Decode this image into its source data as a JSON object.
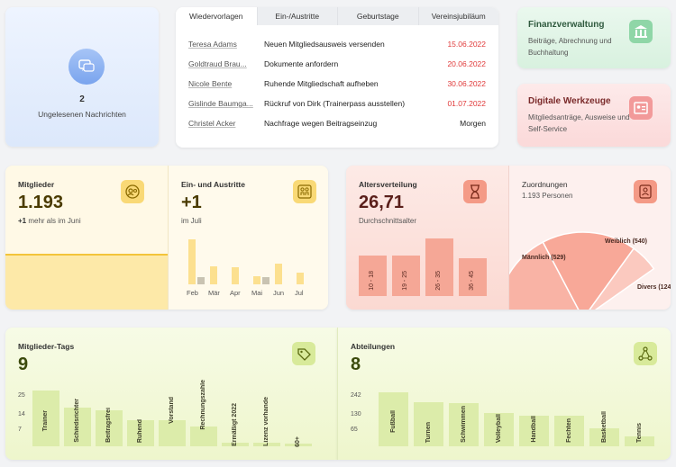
{
  "messages": {
    "count": "2",
    "label": "Ungelesenen Nachrichten",
    "icon": "chat-bubble-icon"
  },
  "reminders": {
    "tabs": [
      "Wiedervorlagen",
      "Ein-/Austritte",
      "Geburtstage",
      "Vereinsjubiläum"
    ],
    "rows": [
      {
        "name": "Teresa Adams",
        "task": "Neuen Mitgliedsausweis versenden",
        "date": "15.06.2022"
      },
      {
        "name": "Goldtraud Brau...",
        "task": "Dokumente anfordern",
        "date": "20.06.2022"
      },
      {
        "name": "Nicole Bente",
        "task": "Ruhende Mitgliedschaft aufheben",
        "date": "30.06.2022"
      },
      {
        "name": "Gislinde Baumga...",
        "task": "Rückruf von Dirk (Trainerpass ausstellen)",
        "date": "01.07.2022"
      },
      {
        "name": "Christel Acker",
        "task": "Nachfrage wegen Beitragseinzug",
        "date": "Morgen"
      }
    ]
  },
  "finance": {
    "title": "Finanzverwaltung",
    "subtitle": "Beiträge, Abrechnung und Buchhaltung",
    "icon": "bank-icon"
  },
  "digital": {
    "title": "Digitale Werkzeuge",
    "subtitle": "Mitgliedsanträge, Ausweise und Self-Service",
    "icon": "id-card-icon"
  },
  "members": {
    "title": "Mitglieder",
    "value": "1.193",
    "delta": "+1",
    "delta_text": "mehr als im Juni",
    "icon": "member-icon"
  },
  "entries": {
    "title": "Ein- und Austritte",
    "value": "+1",
    "sub": "im Juli",
    "icon": "people-icon",
    "chart_data": {
      "type": "bar",
      "categories": [
        "Feb",
        "Mär",
        "Apr",
        "Mai",
        "Jun",
        "Jul"
      ],
      "series": [
        {
          "values": [
            6,
            2.4,
            2.3,
            1.1,
            2.8,
            1.6
          ]
        },
        {
          "values": [
            1,
            0,
            0,
            1,
            0,
            0
          ]
        }
      ]
    }
  },
  "age": {
    "title": "Altersverteilung",
    "value": "26,71",
    "sub": "Durchschnittsalter",
    "icon": "hourglass-icon",
    "chart_data": {
      "type": "bar",
      "categories": [
        "10 - 18",
        "19 - 25",
        "26 - 35",
        "36 - 45"
      ],
      "values": [
        3.6,
        3.6,
        5.1,
        3.4
      ]
    }
  },
  "assignments": {
    "title": "Zuordnungen",
    "sub": "1.193 Personen",
    "icon": "person-badge-icon",
    "chart_data": {
      "type": "pie",
      "slices": [
        {
          "label": "Männlich (529)",
          "value": 529
        },
        {
          "label": "Weiblich (540)",
          "value": 540
        },
        {
          "label": "Divers (124)",
          "value": 124
        }
      ]
    }
  },
  "tags": {
    "title": "Mitglieder-Tags",
    "value": "9",
    "icon": "tag-icon",
    "chart_data": {
      "type": "bar",
      "yticks": [
        "25",
        "14",
        "7"
      ],
      "categories": [
        "Trainer",
        "Schiedsrichter",
        "Beitragsfrei",
        "Ruhend",
        "Vorstand",
        "Rechnungszahle",
        "Ermäßigt 2022",
        "Lizenz vorhande",
        "60+"
      ],
      "values": [
        31,
        21.5,
        20,
        14.5,
        14.5,
        11.2,
        2.2,
        2.2,
        1.2
      ]
    }
  },
  "departments": {
    "title": "Abteilungen",
    "value": "8",
    "icon": "network-icon",
    "chart_data": {
      "type": "bar",
      "yticks": [
        "242",
        "130",
        "65"
      ],
      "categories": [
        "Fußball",
        "Turnen",
        "Schwimmen",
        "Volleyball",
        "Handball",
        "Fechten",
        "Basketball",
        "Tennis"
      ],
      "values": [
        250,
        205,
        200,
        155,
        140,
        140,
        85,
        45
      ]
    }
  }
}
